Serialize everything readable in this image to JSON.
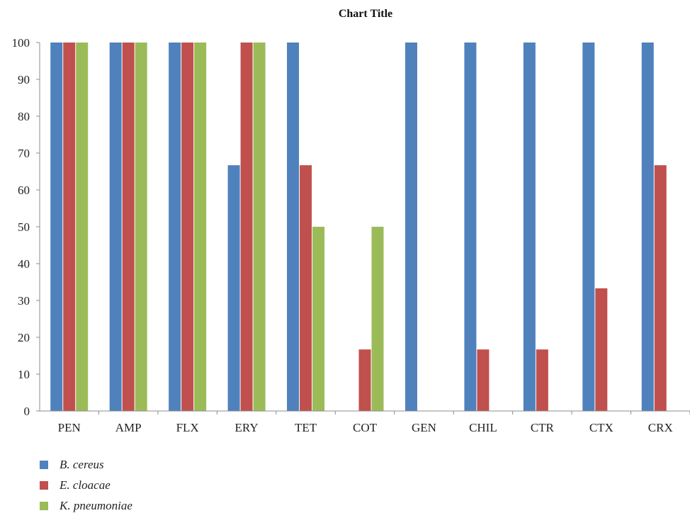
{
  "chart_data": {
    "type": "bar",
    "title": "Chart Title",
    "xlabel": "",
    "ylabel": "",
    "ylim": [
      0,
      100
    ],
    "yticks": [
      0,
      10,
      20,
      30,
      40,
      50,
      60,
      70,
      80,
      90,
      100
    ],
    "grid": false,
    "legend_position": "bottom-left",
    "categories": [
      "PEN",
      "AMP",
      "FLX",
      "ERY",
      "TET",
      "COT",
      "GEN",
      "CHIL",
      "CTR",
      "CTX",
      "CRX"
    ],
    "series": [
      {
        "name": "B. cereus",
        "color": "#4f81bd",
        "values": [
          100,
          100,
          100,
          66.7,
          100,
          0,
          100,
          100,
          100,
          100,
          100
        ]
      },
      {
        "name": "E. cloacae",
        "color": "#c0504d",
        "values": [
          100,
          100,
          100,
          100,
          66.7,
          16.7,
          0,
          16.7,
          16.7,
          33.3,
          66.7
        ]
      },
      {
        "name": "K. pneumoniae",
        "color": "#9bbb59",
        "values": [
          100,
          100,
          100,
          100,
          50,
          50,
          0,
          0,
          0,
          0,
          0
        ]
      }
    ]
  }
}
